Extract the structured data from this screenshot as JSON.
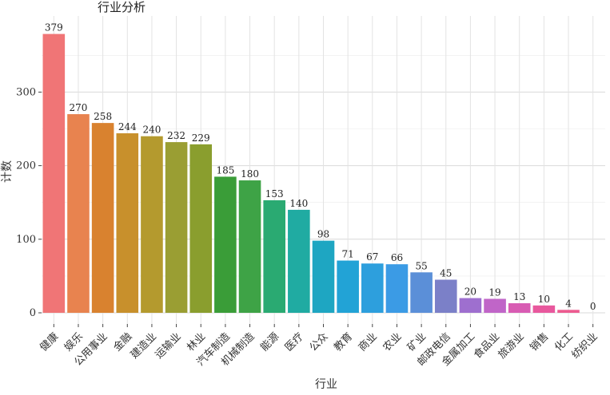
{
  "chart_data": {
    "type": "bar",
    "title": "行业分析",
    "xlabel": "行业",
    "ylabel": "计数",
    "ylim": [
      0,
      400
    ],
    "yticks": [
      0,
      100,
      200,
      300
    ],
    "grid": true,
    "legend": "none",
    "categories": [
      "健康",
      "娱乐",
      "公用事业",
      "金融",
      "建造业",
      "运输业",
      "林业",
      "汽车制造",
      "机械制造",
      "能源",
      "医疗",
      "公众",
      "教育",
      "商业",
      "农业",
      "矿业",
      "邮政电信",
      "金属加工",
      "食品业",
      "旅游业",
      "销售",
      "化工",
      "纺织业"
    ],
    "values": [
      379,
      270,
      258,
      244,
      240,
      232,
      229,
      185,
      180,
      153,
      140,
      98,
      71,
      67,
      66,
      55,
      45,
      20,
      19,
      13,
      10,
      4,
      0
    ],
    "colors": [
      "#F07576",
      "#E8834F",
      "#D9822F",
      "#C8902C",
      "#B49A2E",
      "#9A9E33",
      "#8A9E2E",
      "#3A9D38",
      "#3EA346",
      "#2AAA72",
      "#20ABA2",
      "#1EA6C2",
      "#22A3D6",
      "#2D9FDD",
      "#3B9BE5",
      "#5B8FD8",
      "#7B80C8",
      "#9E6FCF",
      "#C065C8",
      "#D85CB3",
      "#E8589D",
      "#EC5B90",
      "#F0588A"
    ]
  }
}
